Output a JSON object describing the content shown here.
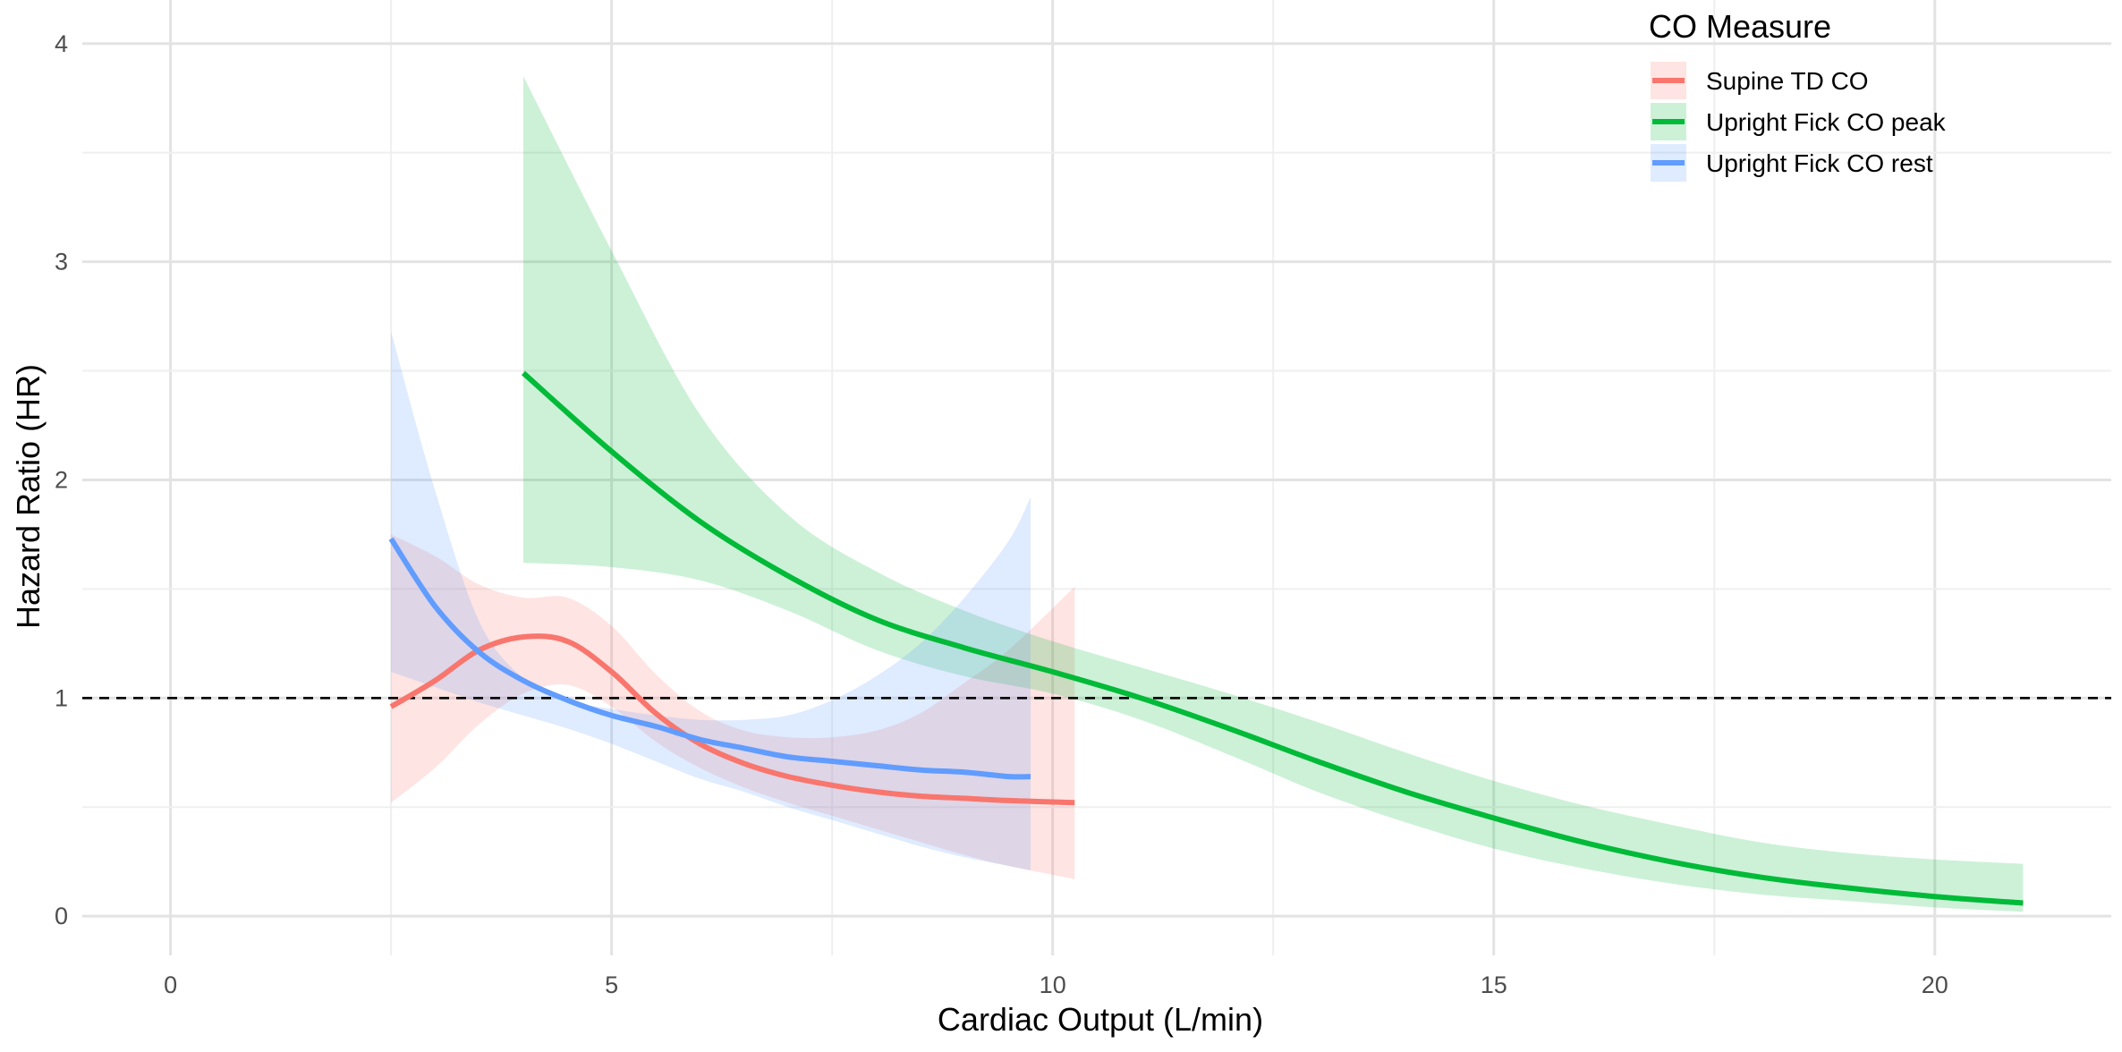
{
  "chart_data": {
    "type": "line",
    "xlabel": "Cardiac Output (L/min)",
    "ylabel": "Hazard Ratio (HR)",
    "xlim": [
      -1.0,
      22.0
    ],
    "ylim": [
      -0.18,
      4.2
    ],
    "x_ticks": [
      0,
      5,
      10,
      15,
      20
    ],
    "y_ticks": [
      0,
      1,
      2,
      3,
      4
    ],
    "x_tick_labels": [
      "0",
      "5",
      "10",
      "15",
      "20"
    ],
    "y_tick_labels": [
      "0",
      "1",
      "2",
      "3",
      "4"
    ],
    "grid": true,
    "reference_line": {
      "y": 1,
      "style": "dashed"
    },
    "legend": {
      "title": "CO Measure",
      "position": "top-right"
    },
    "series": [
      {
        "name": "Supine TD CO",
        "color": "#F8766D",
        "x": [
          2.5,
          3.0,
          3.5,
          4.0,
          4.5,
          5.0,
          5.5,
          6.0,
          6.5,
          7.0,
          7.5,
          8.0,
          8.5,
          9.0,
          9.5,
          10.25
        ],
        "y": [
          0.96,
          1.08,
          1.22,
          1.28,
          1.26,
          1.12,
          0.93,
          0.79,
          0.7,
          0.64,
          0.6,
          0.57,
          0.55,
          0.54,
          0.53,
          0.52
        ],
        "lower": [
          0.52,
          0.68,
          0.88,
          1.02,
          1.06,
          0.96,
          0.8,
          0.68,
          0.59,
          0.52,
          0.46,
          0.4,
          0.34,
          0.28,
          0.23,
          0.17
        ],
        "upper": [
          1.75,
          1.65,
          1.52,
          1.46,
          1.46,
          1.33,
          1.11,
          0.94,
          0.85,
          0.82,
          0.82,
          0.85,
          0.93,
          1.07,
          1.22,
          1.51
        ]
      },
      {
        "name": "Upright Fick CO peak",
        "color": "#00BA38",
        "x": [
          4.0,
          5.0,
          6.0,
          7.0,
          8.0,
          9.0,
          10.0,
          11.0,
          12.0,
          13.0,
          14.0,
          15.0,
          16.0,
          17.0,
          18.0,
          19.0,
          20.0,
          21.0
        ],
        "y": [
          2.49,
          2.13,
          1.81,
          1.56,
          1.36,
          1.23,
          1.12,
          1.0,
          0.86,
          0.71,
          0.57,
          0.45,
          0.34,
          0.25,
          0.18,
          0.13,
          0.09,
          0.06
        ],
        "lower": [
          1.62,
          1.6,
          1.54,
          1.4,
          1.22,
          1.1,
          1.02,
          0.9,
          0.74,
          0.57,
          0.43,
          0.31,
          0.22,
          0.15,
          0.1,
          0.07,
          0.04,
          0.02
        ],
        "upper": [
          3.85,
          3.05,
          2.3,
          1.84,
          1.58,
          1.4,
          1.26,
          1.14,
          1.02,
          0.89,
          0.75,
          0.62,
          0.51,
          0.42,
          0.34,
          0.29,
          0.26,
          0.24
        ]
      },
      {
        "name": "Upright Fick CO rest",
        "color": "#619CFF",
        "x": [
          2.5,
          3.0,
          3.5,
          4.0,
          4.5,
          5.0,
          5.5,
          6.0,
          6.5,
          7.0,
          7.5,
          8.0,
          8.5,
          9.0,
          9.5,
          9.75
        ],
        "y": [
          1.73,
          1.42,
          1.21,
          1.08,
          0.99,
          0.92,
          0.87,
          0.81,
          0.77,
          0.73,
          0.71,
          0.69,
          0.67,
          0.66,
          0.64,
          0.64
        ],
        "lower": [
          1.12,
          1.05,
          0.98,
          0.92,
          0.86,
          0.79,
          0.71,
          0.63,
          0.57,
          0.5,
          0.44,
          0.38,
          0.32,
          0.27,
          0.23,
          0.21
        ],
        "upper": [
          2.68,
          1.95,
          1.35,
          1.09,
          0.99,
          0.95,
          0.92,
          0.9,
          0.9,
          0.92,
          0.99,
          1.1,
          1.25,
          1.46,
          1.72,
          1.92
        ]
      }
    ]
  }
}
